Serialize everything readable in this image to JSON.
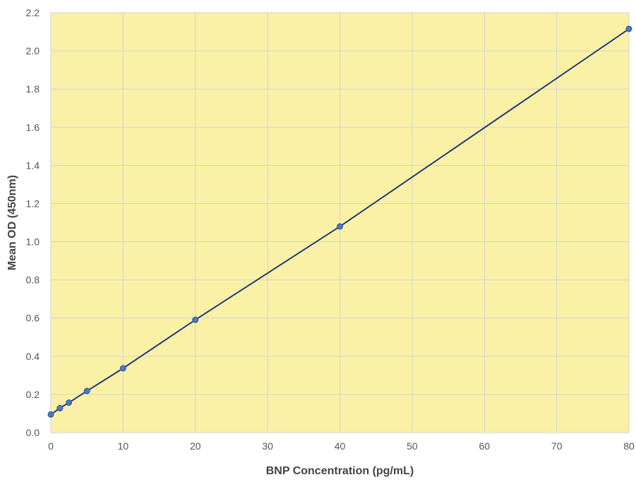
{
  "chart_data": {
    "type": "line",
    "title": "",
    "xlabel": "BNP Concentration (pg/mL)",
    "ylabel": "Mean OD (450nm)",
    "xlim": [
      0,
      80
    ],
    "ylim": [
      0,
      2.2
    ],
    "x_ticks": [
      0,
      10,
      20,
      30,
      40,
      50,
      60,
      70,
      80
    ],
    "y_ticks": [
      0.0,
      0.2,
      0.4,
      0.6,
      0.8,
      1.0,
      1.2,
      1.4,
      1.6,
      1.8,
      2.0,
      2.2
    ],
    "x_tick_labels": [
      "0",
      "10",
      "20",
      "30",
      "40",
      "50",
      "60",
      "70",
      "80"
    ],
    "y_tick_labels": [
      "0.0",
      "0.2",
      "0.4",
      "0.6",
      "0.8",
      "1.0",
      "1.2",
      "1.4",
      "1.6",
      "1.8",
      "2.0",
      "2.2"
    ],
    "grid": true,
    "legend": "none",
    "series": [
      {
        "x": [
          0,
          1.25,
          2.5,
          5,
          10,
          20,
          40,
          80
        ],
        "y": [
          0.095,
          0.128,
          0.157,
          0.218,
          0.337,
          0.591,
          1.08,
          2.115
        ]
      }
    ],
    "colors": {
      "plot_background": "#FAF1A7",
      "grid": "#D2D2D2",
      "line": "#1F3C74",
      "marker_fill": "#4A79C9",
      "marker_stroke": "#2E5597",
      "tick_text": "#555555",
      "axis_title": "#444444"
    }
  }
}
